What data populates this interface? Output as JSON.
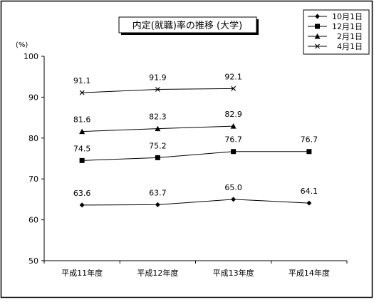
{
  "chart_data": {
    "type": "line",
    "title": "内定(就職)率の推移 (大学)",
    "ylabel": "(%)",
    "xlabel": "",
    "ylim": [
      50,
      100
    ],
    "yticks": [
      "50",
      "60",
      "70",
      "80",
      "90",
      "100"
    ],
    "categories": [
      "平成11年度",
      "平成12年度",
      "平成13年度",
      "平成14年度"
    ],
    "grid": false,
    "legend_position": "top-right",
    "series": [
      {
        "name": "10月1日",
        "marker": "diamond",
        "values": [
          63.6,
          63.7,
          65.0,
          64.1
        ],
        "labels": [
          "63.6",
          "63.7",
          "65.0",
          "64.1"
        ]
      },
      {
        "name": "12月1日",
        "marker": "square",
        "values": [
          74.5,
          75.2,
          76.7,
          76.7
        ],
        "labels": [
          "74.5",
          "75.2",
          "76.7",
          "76.7"
        ]
      },
      {
        "name": "2月1日",
        "marker": "triangle",
        "values": [
          81.6,
          82.3,
          82.9,
          null
        ],
        "labels": [
          "81.6",
          "82.3",
          "82.9",
          ""
        ]
      },
      {
        "name": "4月1日",
        "marker": "x",
        "values": [
          91.1,
          91.9,
          92.1,
          null
        ],
        "labels": [
          "91.1",
          "91.9",
          "92.1",
          ""
        ]
      }
    ]
  }
}
